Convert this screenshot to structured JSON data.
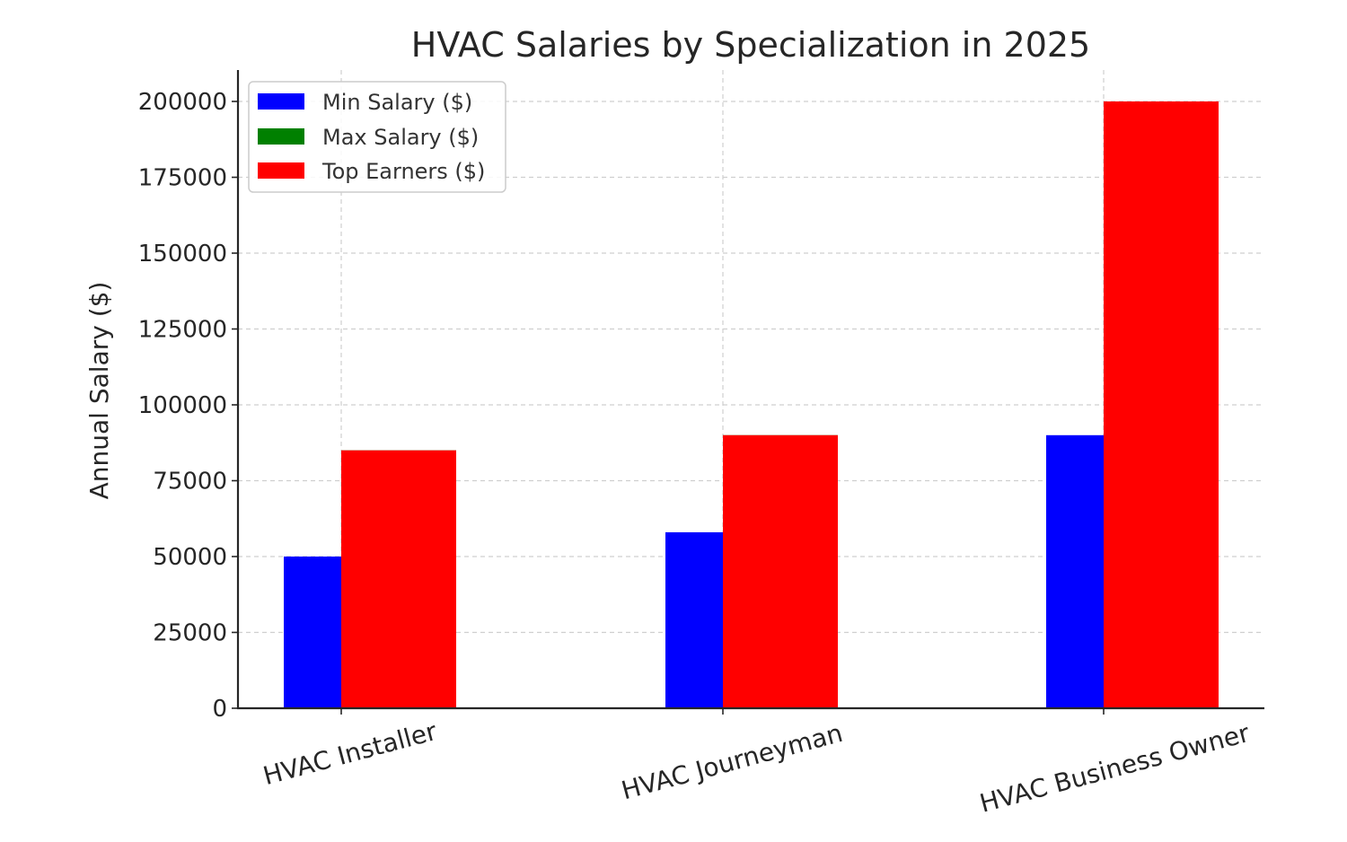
{
  "chart_data": {
    "type": "bar",
    "title": "HVAC Salaries by Specialization in 2025",
    "xlabel": "",
    "ylabel": "Annual Salary ($)",
    "categories": [
      "HVAC Installer",
      "HVAC Journeyman",
      "HVAC Business Owner"
    ],
    "series": [
      {
        "name": "Min Salary ($)",
        "color": "#0000ff",
        "values": [
          50000,
          58000,
          90000
        ]
      },
      {
        "name": "Max Salary ($)",
        "color": "#008000",
        "values": [
          85000,
          90000,
          200000
        ]
      },
      {
        "name": "Top Earners ($)",
        "color": "#ff0000",
        "values": [
          85000,
          90000,
          200000
        ]
      }
    ],
    "ylim": [
      0,
      210000
    ],
    "yticks": [
      0,
      25000,
      50000,
      75000,
      100000,
      125000,
      150000,
      175000,
      200000
    ],
    "grid": true,
    "legend_position": "top-left"
  }
}
